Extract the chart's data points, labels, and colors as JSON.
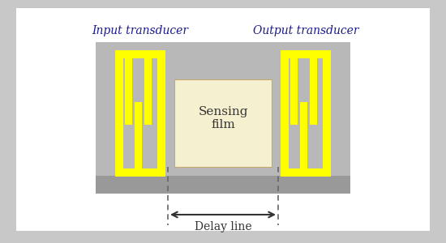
{
  "bg_outer": "#c8c8c8",
  "bg_inner": "#b8b8b8",
  "bg_white": "#ffffff",
  "yellow": "#ffff00",
  "sensing_fill": "#f5f0d0",
  "sensing_border": "#c8a870",
  "substrate_fill": "#999999",
  "title_color": "#1a1a8e",
  "text_color": "#333333",
  "arrow_color": "#333333",
  "dashed_color": "#666666",
  "brown_base": "#b08050",
  "input_label": "Input transducer",
  "output_label": "Output transducer",
  "sensing_label": "Sensing\nfilm",
  "delay_label": "Delay line",
  "figsize": [
    5.5,
    3.0
  ],
  "dpi": 100
}
